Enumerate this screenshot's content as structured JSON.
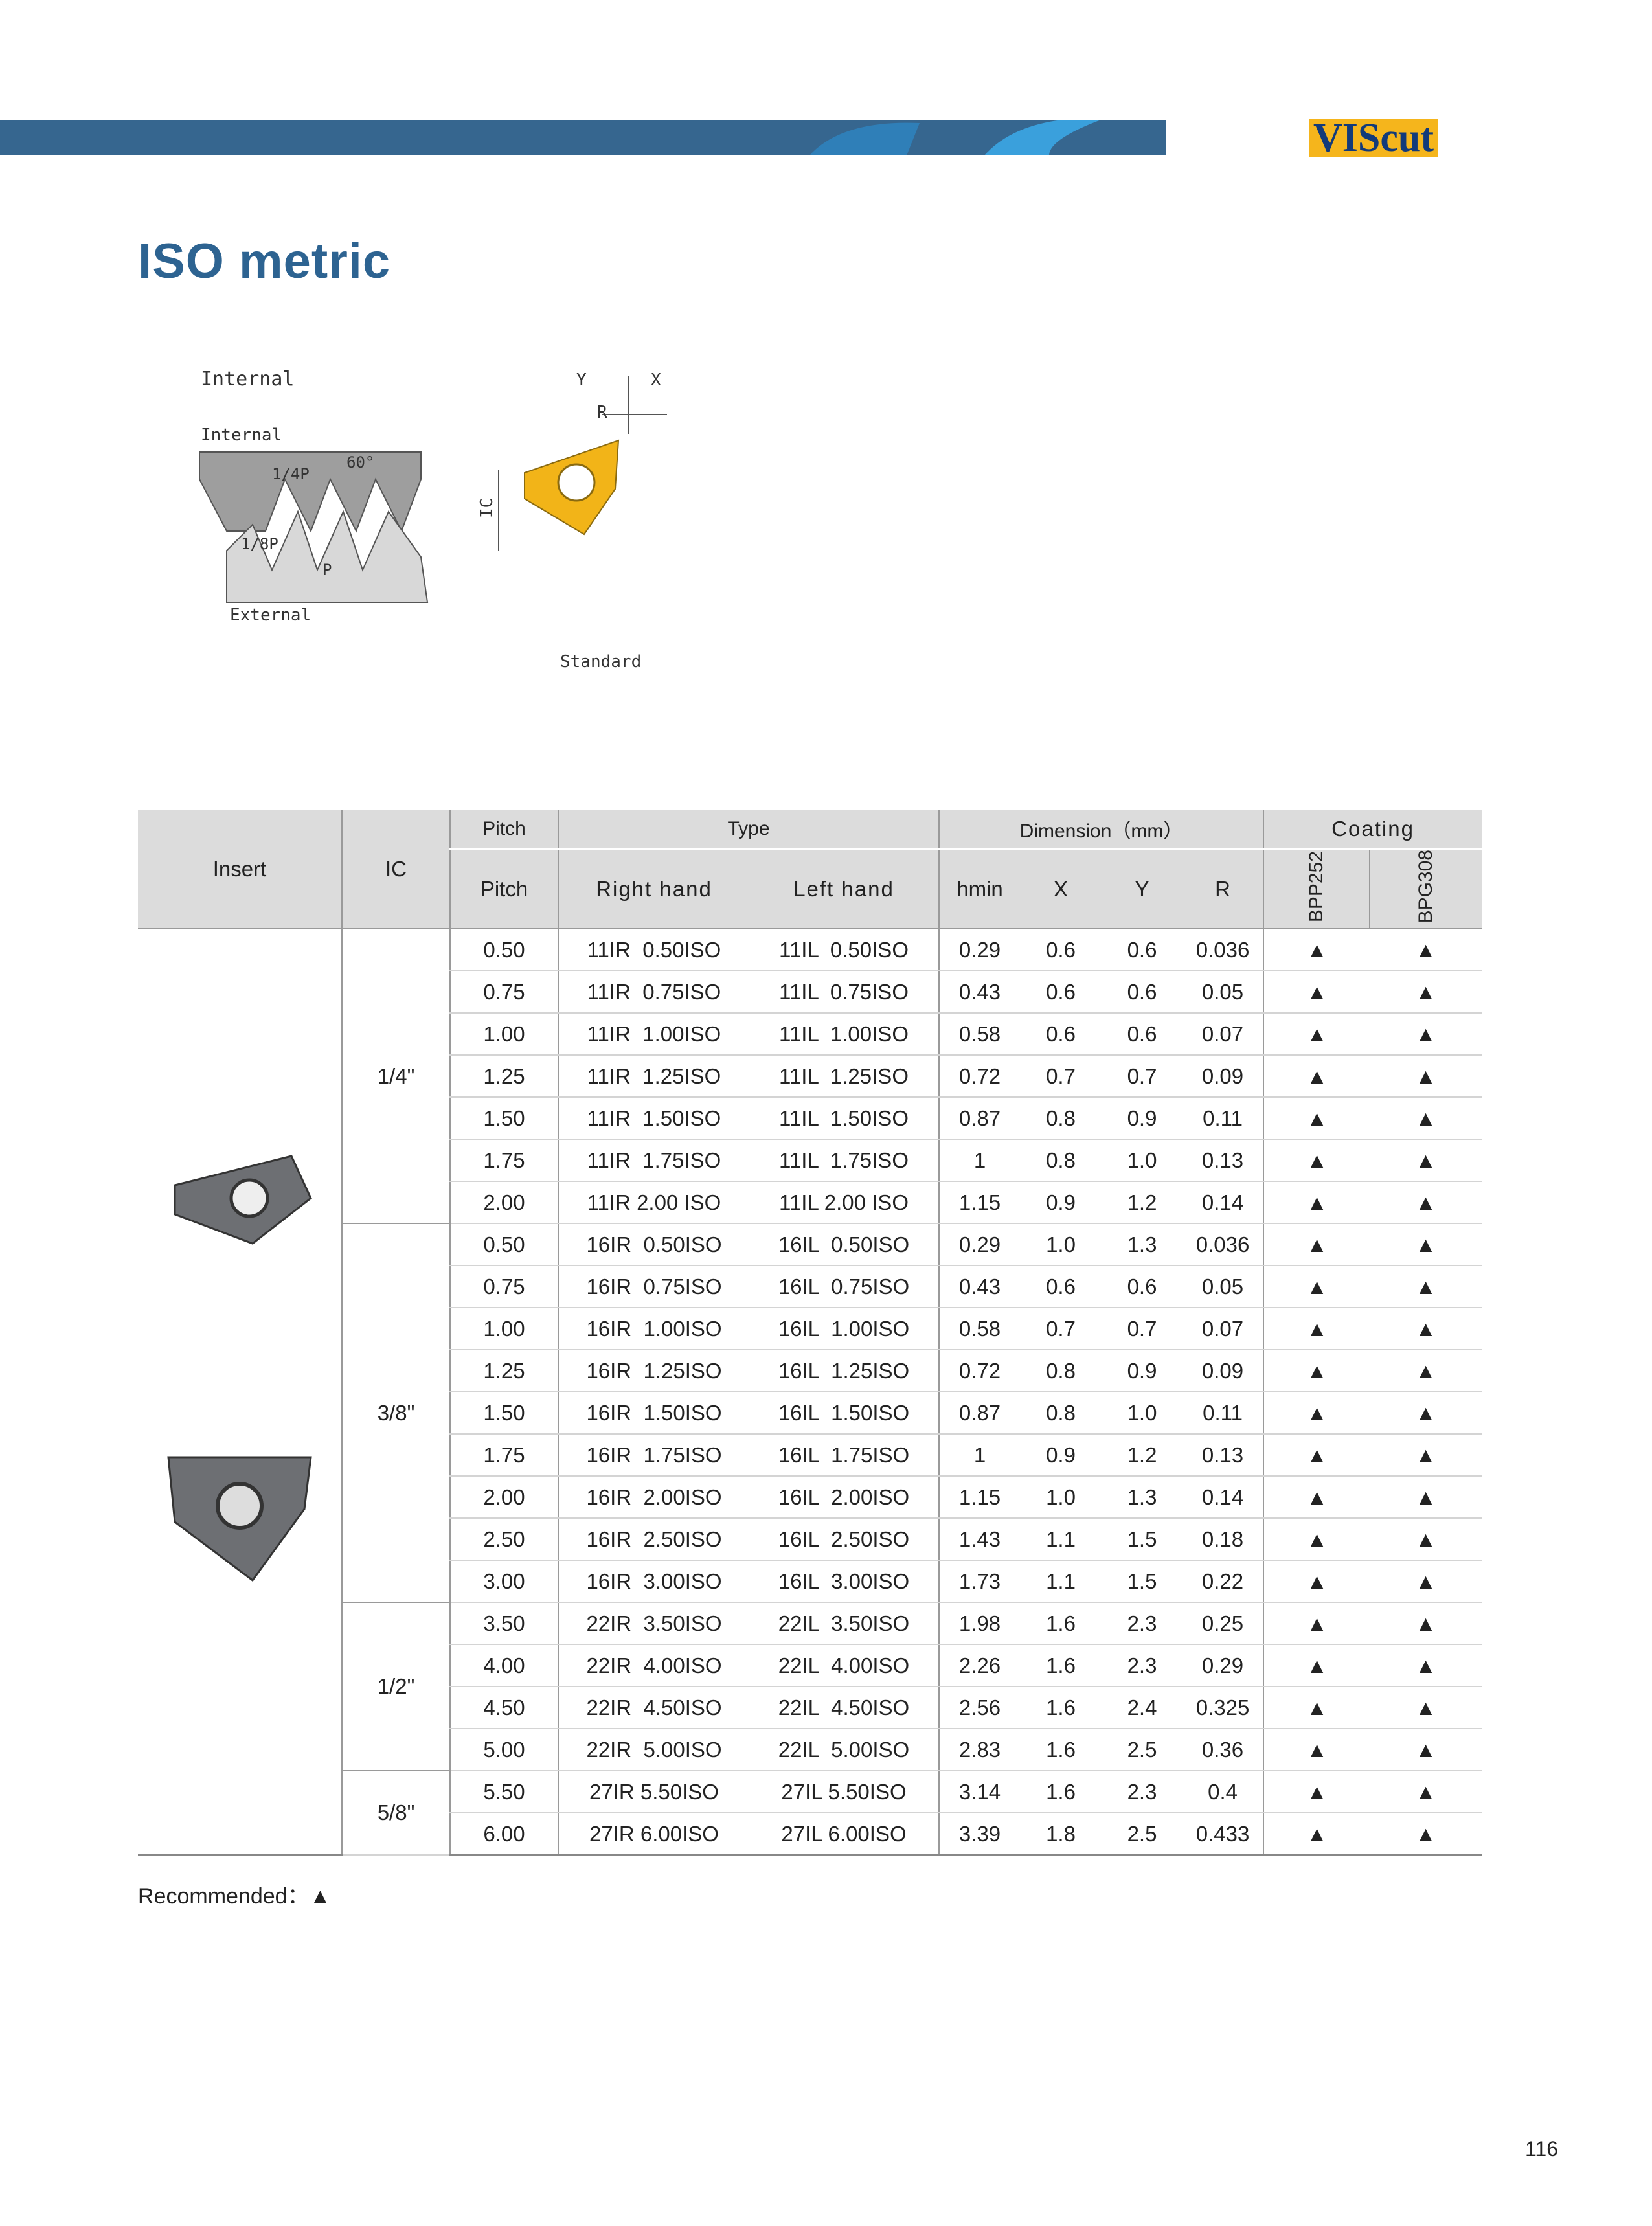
{
  "header": {
    "brand": "VIScut"
  },
  "title": "ISO metric",
  "diagram": {
    "caption": "Internal",
    "internal": "Internal",
    "quarter_pitch": "1/4P",
    "angle": "60°",
    "eighth_pitch": "1/8P",
    "pitch": "P",
    "external": "External",
    "y": "Y",
    "x": "X",
    "r": "R",
    "ic": "IC",
    "standard": "Standard"
  },
  "table": {
    "header": {
      "insert": "Insert",
      "ic": "IC",
      "pitch_top": "Pitch",
      "type": "Type",
      "dimension": "Dimension（mm）",
      "coating": "Coating",
      "pitch": "Pitch",
      "right_hand": "Right hand",
      "left_hand": "Left hand",
      "hmin": "hmin",
      "x": "X",
      "y": "Y",
      "r": "R",
      "bpp252": "BPP252",
      "bpg308": "BPG308"
    },
    "groups": [
      {
        "ic": "1/4\"",
        "rows": [
          [
            "0.50",
            "11IR  0.50ISO",
            "11IL  0.50ISO",
            "0.29",
            "0.6",
            "0.6",
            "0.036",
            "▲",
            "▲"
          ],
          [
            "0.75",
            "11IR  0.75ISO",
            "11IL  0.75ISO",
            "0.43",
            "0.6",
            "0.6",
            "0.05",
            "▲",
            "▲"
          ],
          [
            "1.00",
            "11IR  1.00ISO",
            "11IL  1.00ISO",
            "0.58",
            "0.6",
            "0.6",
            "0.07",
            "▲",
            "▲"
          ],
          [
            "1.25",
            "11IR  1.25ISO",
            "11IL  1.25ISO",
            "0.72",
            "0.7",
            "0.7",
            "0.09",
            "▲",
            "▲"
          ],
          [
            "1.50",
            "11IR  1.50ISO",
            "11IL  1.50ISO",
            "0.87",
            "0.8",
            "0.9",
            "0.11",
            "▲",
            "▲"
          ],
          [
            "1.75",
            "11IR  1.75ISO",
            "11IL  1.75ISO",
            "1",
            "0.8",
            "1.0",
            "0.13",
            "▲",
            "▲"
          ],
          [
            "2.00",
            "11IR 2.00 ISO",
            "11IL 2.00 ISO",
            "1.15",
            "0.9",
            "1.2",
            "0.14",
            "▲",
            "▲"
          ]
        ]
      },
      {
        "ic": "3/8\"",
        "rows": [
          [
            "0.50",
            "16IR  0.50ISO",
            "16IL  0.50ISO",
            "0.29",
            "1.0",
            "1.3",
            "0.036",
            "▲",
            "▲"
          ],
          [
            "0.75",
            "16IR  0.75ISO",
            "16IL  0.75ISO",
            "0.43",
            "0.6",
            "0.6",
            "0.05",
            "▲",
            "▲"
          ],
          [
            "1.00",
            "16IR  1.00ISO",
            "16IL  1.00ISO",
            "0.58",
            "0.7",
            "0.7",
            "0.07",
            "▲",
            "▲"
          ],
          [
            "1.25",
            "16IR  1.25ISO",
            "16IL  1.25ISO",
            "0.72",
            "0.8",
            "0.9",
            "0.09",
            "▲",
            "▲"
          ],
          [
            "1.50",
            "16IR  1.50ISO",
            "16IL  1.50ISO",
            "0.87",
            "0.8",
            "1.0",
            "0.11",
            "▲",
            "▲"
          ],
          [
            "1.75",
            "16IR  1.75ISO",
            "16IL  1.75ISO",
            "1",
            "0.9",
            "1.2",
            "0.13",
            "▲",
            "▲"
          ],
          [
            "2.00",
            "16IR  2.00ISO",
            "16IL  2.00ISO",
            "1.15",
            "1.0",
            "1.3",
            "0.14",
            "▲",
            "▲"
          ],
          [
            "2.50",
            "16IR  2.50ISO",
            "16IL  2.50ISO",
            "1.43",
            "1.1",
            "1.5",
            "0.18",
            "▲",
            "▲"
          ],
          [
            "3.00",
            "16IR  3.00ISO",
            "16IL  3.00ISO",
            "1.73",
            "1.1",
            "1.5",
            "0.22",
            "▲",
            "▲"
          ]
        ]
      },
      {
        "ic": "1/2\"",
        "rows": [
          [
            "3.50",
            "22IR  3.50ISO",
            "22IL  3.50ISO",
            "1.98",
            "1.6",
            "2.3",
            "0.25",
            "▲",
            "▲"
          ],
          [
            "4.00",
            "22IR  4.00ISO",
            "22IL  4.00ISO",
            "2.26",
            "1.6",
            "2.3",
            "0.29",
            "▲",
            "▲"
          ],
          [
            "4.50",
            "22IR  4.50ISO",
            "22IL  4.50ISO",
            "2.56",
            "1.6",
            "2.4",
            "0.325",
            "▲",
            "▲"
          ],
          [
            "5.00",
            "22IR  5.00ISO",
            "22IL  5.00ISO",
            "2.83",
            "1.6",
            "2.5",
            "0.36",
            "▲",
            "▲"
          ]
        ]
      },
      {
        "ic": "5/8\"",
        "rows": [
          [
            "5.50",
            "27IR 5.50ISO",
            "27IL 5.50ISO",
            "3.14",
            "1.6",
            "2.3",
            "0.4",
            "▲",
            "▲"
          ],
          [
            "6.00",
            "27IR 6.00ISO",
            "27IL 6.00ISO",
            "3.39",
            "1.8",
            "2.5",
            "0.433",
            "▲",
            "▲"
          ]
        ]
      }
    ]
  },
  "legend": {
    "label": "Recommended：",
    "symbol": "▲"
  },
  "page_number": "116"
}
